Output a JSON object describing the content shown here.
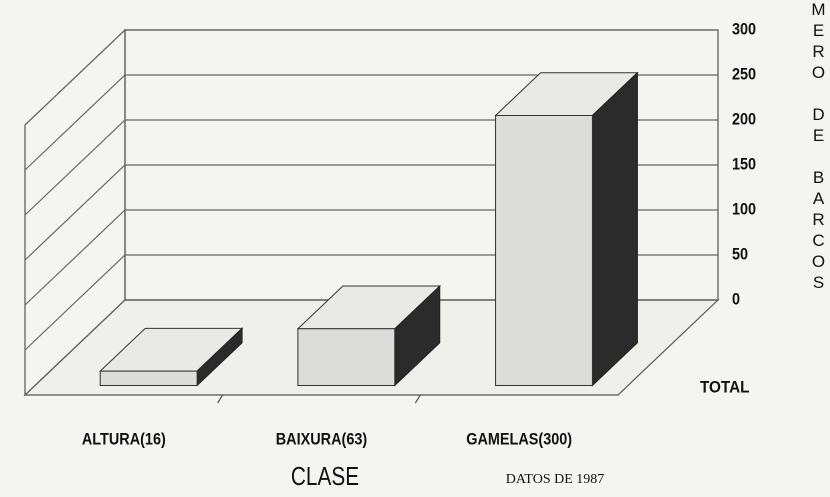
{
  "chart_data": {
    "type": "bar3d",
    "categories": [
      "ALTURA(16)",
      "BAIXURA(63)",
      "GAMELAS(300)"
    ],
    "series": [
      {
        "name": "TOTAL",
        "color": "#dcdcda",
        "values": [
          16,
          63,
          300
        ]
      }
    ],
    "ylim": [
      0,
      300
    ],
    "yticks": [
      0,
      50,
      100,
      150,
      200,
      250,
      300
    ],
    "grid": true,
    "y_label": "MERO DE BARCOS",
    "x_label": "CLASE",
    "note": "DATOS DE 1987"
  }
}
